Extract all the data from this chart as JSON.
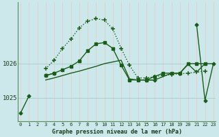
{
  "title": "Graphe pression niveau de la mer (hPa)",
  "bg_color": "#cce8ea",
  "vgrid_color": "#e8c8ca",
  "hgrid_color": "#aacccc",
  "line_color": "#1a5c1a",
  "x_labels": [
    "0",
    "1",
    "2",
    "3",
    "4",
    "5",
    "6",
    "7",
    "8",
    "9",
    "10",
    "11",
    "12",
    "13",
    "14",
    "15",
    "16",
    "17",
    "18",
    "19",
    "20",
    "21",
    "22",
    "23"
  ],
  "yticks": [
    1025,
    1026
  ],
  "ylim": [
    1024.3,
    1027.8
  ],
  "xlim": [
    -0.3,
    23.3
  ],
  "series_solid": [
    {
      "y": [
        1024.55,
        1025.05,
        null,
        1025.65,
        1025.72,
        null,
        null,
        null,
        null,
        null,
        null,
        null,
        null,
        null,
        null,
        1025.52,
        1025.52,
        null,
        null,
        null,
        null,
        null,
        null,
        null
      ],
      "lw": 1.0,
      "marker": "D",
      "ms": 2.5
    },
    {
      "y": [
        null,
        null,
        null,
        1025.65,
        1025.72,
        1025.82,
        1025.92,
        1026.08,
        1026.38,
        1026.58,
        1026.62,
        1026.45,
        1025.95,
        1025.52,
        1025.52,
        1025.52,
        1025.62,
        1025.72,
        1025.72,
        1025.72,
        1026.0,
        1026.0,
        1026.0,
        null
      ],
      "lw": 1.0,
      "marker": "s",
      "ms": 2.5
    },
    {
      "y": [
        null,
        null,
        null,
        1025.52,
        1025.58,
        1025.65,
        1025.72,
        1025.78,
        1025.85,
        1025.92,
        1026.0,
        1026.05,
        1026.1,
        1025.55,
        1025.52,
        1025.52,
        1025.52,
        1025.62,
        1025.72,
        1025.72,
        1025.98,
        1025.75,
        1026.0,
        1026.0
      ],
      "lw": 1.0,
      "marker": null,
      "ms": 0
    },
    {
      "y": [
        null,
        null,
        null,
        null,
        null,
        null,
        null,
        null,
        null,
        null,
        null,
        null,
        null,
        null,
        null,
        null,
        null,
        null,
        null,
        null,
        null,
        1027.15,
        1024.92,
        1026.0
      ],
      "lw": 1.0,
      "marker": "D",
      "ms": 2.5
    }
  ],
  "series_dotted": [
    {
      "y": [
        null,
        null,
        null,
        1025.85,
        1026.1,
        1026.45,
        1026.72,
        1027.05,
        1027.25,
        1027.32,
        1027.28,
        1027.02,
        1026.45,
        1025.95,
        1025.58,
        1025.58,
        1025.62,
        1025.65,
        1025.68,
        1025.7,
        1025.72,
        1025.75,
        1025.78,
        null
      ],
      "lw": 1.0,
      "marker": "+",
      "ms": 4.5
    }
  ]
}
